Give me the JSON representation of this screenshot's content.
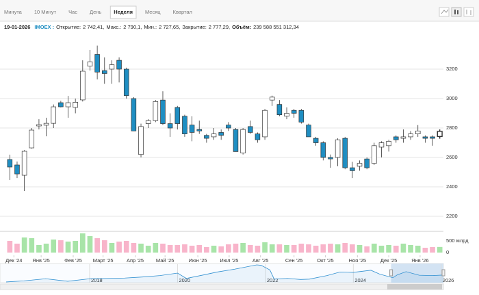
{
  "tabs": {
    "items": [
      "Минута",
      "10 Минут",
      "Час",
      "День",
      "Неделя",
      "Месяц",
      "Квартал"
    ],
    "active": 4
  },
  "info": {
    "date": "19-01-2026",
    "symbol": "IMOEX :",
    "fields": [
      {
        "label": "Открытие:",
        "value": "2 742,41,"
      },
      {
        "label": "Макс.:",
        "value": "2 790,1,"
      },
      {
        "label": "Мин.:",
        "value": "2 727,65,"
      },
      {
        "label": "Закрытие:",
        "value": "2 777,29,"
      },
      {
        "label": "Объём:",
        "value": "239 588 551 312,34"
      }
    ]
  },
  "chart_data": [
    {
      "type": "candlestick",
      "up_color": "#ffffff",
      "down_color": "#1f8ec2",
      "grid": true,
      "xlim": [
        -0.5,
        59.5
      ],
      "xticks": [
        {
          "value": 0.56,
          "label": "Дек '24"
        },
        {
          "value": 4.3,
          "label": "Янв '25"
        },
        {
          "value": 8.7,
          "label": "Фев '25"
        },
        {
          "value": 12.8,
          "label": "Март '25"
        },
        {
          "value": 17.2,
          "label": "Апр '25"
        },
        {
          "value": 21.3,
          "label": "Май '25"
        },
        {
          "value": 25.8,
          "label": "Июн '25"
        },
        {
          "value": 30.1,
          "label": "Июл '25"
        },
        {
          "value": 34.4,
          "label": "Авг '25"
        },
        {
          "value": 39.0,
          "label": "Сен '25"
        },
        {
          "value": 43.3,
          "label": "Окт '25"
        },
        {
          "value": 47.7,
          "label": "Ноя '25"
        },
        {
          "value": 52.0,
          "label": "Дек '25"
        },
        {
          "value": 56.3,
          "label": "Янв '26"
        }
      ],
      "ylim": [
        2110,
        3400
      ],
      "yticks": [
        2200,
        2400,
        2600,
        2800,
        3000,
        3200
      ],
      "open": [
        2586,
        2549,
        2479,
        2665,
        2814,
        2819,
        2832,
        2972,
        2944,
        2940,
        2991,
        3220,
        3300,
        3190,
        3200,
        3260,
        3200,
        3000,
        2620,
        2830,
        2850,
        2990,
        2830,
        2940,
        2880,
        2820,
        2790,
        2750,
        2740,
        2770,
        2820,
        2790,
        2630,
        2810,
        2760,
        2740,
        2990,
        2960,
        2880,
        2920,
        2920,
        2820,
        2730,
        2700,
        2600,
        2600,
        2730,
        2530,
        2540,
        2590,
        2560,
        2670,
        2680,
        2740,
        2730,
        2740,
        2760,
        2740,
        2740,
        2742.41
      ],
      "high": [
        2619,
        2572,
        2650,
        2800,
        2860,
        2870,
        2960,
        2985,
        3018,
        3000,
        3260,
        3330,
        3360,
        3280,
        3260,
        3280,
        3210,
        3010,
        2830,
        2860,
        2990,
        3050,
        2900,
        2950,
        2890,
        2880,
        2850,
        2760,
        2800,
        2790,
        2840,
        2800,
        2800,
        2850,
        2770,
        2930,
        3020,
        2990,
        2940,
        2930,
        2930,
        2830,
        2740,
        2710,
        2620,
        2730,
        2740,
        2570,
        2580,
        2600,
        2700,
        2710,
        2720,
        2750,
        2790,
        2780,
        2820,
        2750,
        2750,
        2790.1
      ],
      "low": [
        2447,
        2460,
        2372,
        2660,
        2790,
        2744,
        2800,
        2940,
        2870,
        2900,
        2980,
        3190,
        3130,
        3100,
        3100,
        3110,
        3000,
        2780,
        2600,
        2800,
        2840,
        2820,
        2740,
        2790,
        2740,
        2710,
        2760,
        2700,
        2720,
        2720,
        2780,
        2640,
        2620,
        2760,
        2700,
        2720,
        2950,
        2880,
        2860,
        2870,
        2830,
        2740,
        2680,
        2580,
        2530,
        2540,
        2520,
        2460,
        2510,
        2520,
        2550,
        2600,
        2640,
        2700,
        2700,
        2720,
        2740,
        2700,
        2680,
        2727.65
      ],
      "close": [
        2535,
        2488,
        2642,
        2786,
        2823,
        2832,
        2944,
        2944,
        2972,
        2975,
        3186,
        3250,
        3180,
        3170,
        3230,
        3200,
        3020,
        2780,
        2810,
        2850,
        2980,
        2830,
        2800,
        2830,
        2760,
        2770,
        2780,
        2730,
        2760,
        2750,
        2800,
        2640,
        2790,
        2770,
        2720,
        2920,
        3010,
        2890,
        2900,
        2900,
        2840,
        2740,
        2700,
        2600,
        2590,
        2720,
        2530,
        2510,
        2560,
        2530,
        2680,
        2700,
        2710,
        2720,
        2740,
        2760,
        2780,
        2730,
        2730,
        2777.29
      ]
    },
    {
      "type": "volume",
      "up_color": "#a8e4a8",
      "down_color": "#f8b4ca",
      "ylim": [
        0,
        850
      ],
      "yticks": [
        0,
        {
          "value": 500,
          "label": "500 млрд"
        }
      ],
      "values": [
        500,
        382,
        647,
        618,
        324,
        382,
        559,
        529,
        471,
        500,
        824,
        706,
        618,
        529,
        412,
        471,
        500,
        412,
        382,
        294,
        412,
        382,
        324,
        324,
        353,
        294,
        324,
        235,
        294,
        265,
        353,
        382,
        412,
        324,
        294,
        441,
        353,
        353,
        324,
        324,
        382,
        353,
        294,
        353,
        382,
        353,
        412,
        353,
        324,
        265,
        382,
        294,
        324,
        294,
        382,
        324,
        294,
        206,
        235,
        239.59
      ]
    },
    {
      "type": "line",
      "color": "#2f8fd0",
      "xlim": [
        2016.1,
        2026.05
      ],
      "xticks": [
        2018,
        2020,
        2022,
        2024,
        2026
      ],
      "ylim": [
        1700,
        4300
      ],
      "selection": [
        2024.86,
        2026.05
      ],
      "x": [
        2016.1,
        2016.5,
        2017.0,
        2017.5,
        2018.0,
        2018.4,
        2018.8,
        2019.2,
        2019.6,
        2020.0,
        2020.2,
        2020.6,
        2020.9,
        2021.3,
        2021.8,
        2021.9,
        2022.1,
        2022.2,
        2022.5,
        2022.8,
        2023.0,
        2023.4,
        2023.7,
        2024.0,
        2024.4,
        2024.6,
        2024.9,
        2025.0,
        2025.2,
        2025.5,
        2025.8,
        2026.05
      ],
      "values": [
        1800,
        1950,
        2250,
        1900,
        2250,
        2300,
        2350,
        2500,
        2700,
        3050,
        2300,
        2800,
        3200,
        3600,
        4200,
        4150,
        3500,
        2200,
        2300,
        2150,
        2200,
        2700,
        3200,
        3150,
        3450,
        2900,
        2400,
        2800,
        3250,
        2750,
        2700,
        2777
      ]
    }
  ]
}
